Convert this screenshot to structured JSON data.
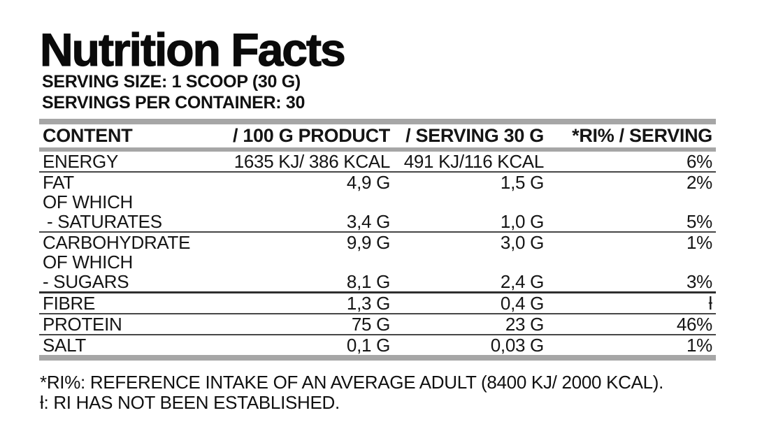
{
  "page": {
    "background_color": "#ffffff",
    "bar_color": "#a6a6a6",
    "text_color": "#101010"
  },
  "header": {
    "title": "Nutrition Facts",
    "serving_size": "SERVING SIZE: 1 SCOOP (30 G)",
    "servings_per_container": "SERVINGS PER CONTAINER: 30"
  },
  "table": {
    "headers": {
      "content": "CONTENT",
      "per_100g": "/ 100 G PRODUCT",
      "per_serving": "/ SERVING 30 G",
      "ri_per_serving": "*RI% / SERVING"
    },
    "rows": [
      {
        "label": "ENERGY",
        "per100": "1635 KJ/ 386 KCAL",
        "serving": "491 KJ/116 KCAL",
        "ri": "6%"
      },
      {
        "label": "FAT",
        "per100": "4,9 G",
        "serving": "1,5 G",
        "ri": "2%"
      },
      {
        "label": "OF WHICH",
        "per100": "",
        "serving": "",
        "ri": ""
      },
      {
        "label": "- SATURATES",
        "per100": "3,4 G",
        "serving": "1,0 G",
        "ri": "5%"
      },
      {
        "label": "CARBOHYDRATE",
        "per100": "9,9 G",
        "serving": "3,0 G",
        "ri": "1%"
      },
      {
        "label": "OF WHICH",
        "per100": "",
        "serving": "",
        "ri": ""
      },
      {
        "label": "- SUGARS",
        "per100": "8,1 G",
        "serving": "2,4 G",
        "ri": "3%"
      },
      {
        "label": "FIBRE",
        "per100": "1,3 G",
        "serving": "0,4 G",
        "ri": "ƚ"
      },
      {
        "label": "PROTEIN",
        "per100": "75 G",
        "serving": "23 G",
        "ri": "46%"
      },
      {
        "label": "SALT",
        "per100": "0,1 G",
        "serving": "0,03 G",
        "ri": "1%"
      }
    ]
  },
  "footnotes": [
    "*RI%: REFERENCE INTAKE OF AN AVERAGE ADULT (8400 KJ/ 2000 KCAL).",
    "ƚ: RI HAS NOT BEEN ESTABLISHED."
  ]
}
